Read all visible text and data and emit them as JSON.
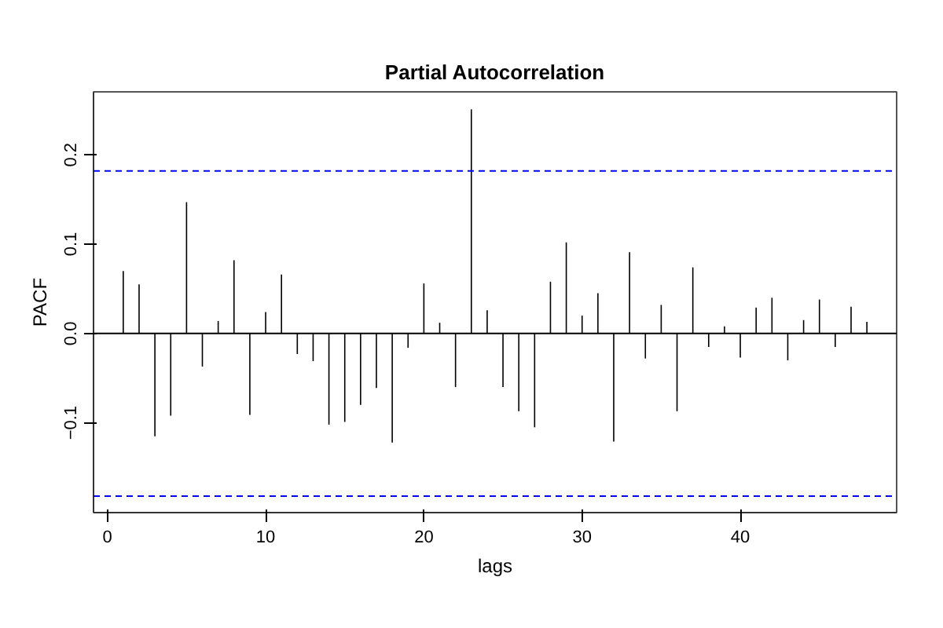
{
  "chart_data": {
    "type": "bar",
    "title": "Partial Autocorrelation",
    "xlabel": "lags",
    "ylabel": "PACF",
    "x": [
      1,
      2,
      3,
      4,
      5,
      6,
      7,
      8,
      9,
      10,
      11,
      12,
      13,
      14,
      15,
      16,
      17,
      18,
      19,
      20,
      21,
      22,
      23,
      24,
      25,
      26,
      27,
      28,
      29,
      30,
      31,
      32,
      33,
      34,
      35,
      36,
      37,
      38,
      39,
      40,
      41,
      42,
      43,
      44,
      45,
      46,
      47,
      48
    ],
    "values": [
      0.07,
      0.055,
      -0.115,
      -0.092,
      0.147,
      -0.037,
      0.014,
      0.082,
      -0.091,
      0.024,
      0.066,
      -0.023,
      -0.031,
      -0.102,
      -0.099,
      -0.08,
      -0.061,
      -0.122,
      -0.016,
      0.056,
      0.012,
      -0.06,
      0.251,
      0.026,
      -0.06,
      -0.087,
      -0.105,
      0.058,
      0.102,
      0.02,
      0.045,
      -0.121,
      0.091,
      -0.028,
      0.032,
      -0.087,
      0.074,
      -0.015,
      0.008,
      -0.027,
      0.029,
      0.04,
      -0.03,
      0.015,
      0.038,
      -0.015,
      0.03,
      0.013
    ],
    "color": "#000000",
    "xlim": [
      -0.88,
      49.88
    ],
    "ylim": [
      -0.2005,
      0.2705
    ],
    "xticks": [
      0,
      10,
      20,
      30,
      40
    ],
    "yticks": [
      -0.1,
      {
        "value": 0,
        "label": "0.0"
      },
      0.1,
      0.2
    ],
    "ref_lines": [
      {
        "axis": "y",
        "value": 0,
        "color": "#000000",
        "line_style": "solid"
      },
      {
        "axis": "y",
        "value": 0.182,
        "color": "#0000ff",
        "line_style": "dashed"
      },
      {
        "axis": "y",
        "value": -0.182,
        "color": "#0000ff",
        "line_style": "dashed"
      }
    ],
    "grid": false
  }
}
